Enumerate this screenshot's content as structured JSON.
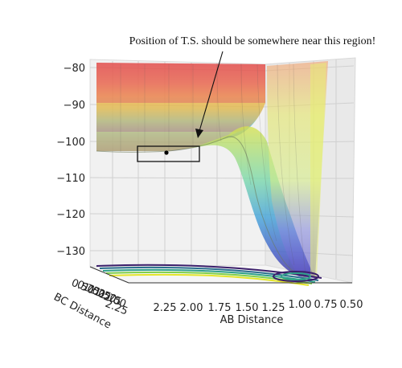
{
  "chart_data": {
    "type": "surface",
    "annotation": "Position of T.S. should be somewhere near this region!",
    "xlabel": "AB Distance",
    "ylabel": "BC Distance",
    "zlabel": "",
    "z_ticks": [
      "−80",
      "−90",
      "−100",
      "−110",
      "−120",
      "−130"
    ],
    "x_ticks": [
      "2.25",
      "2.00",
      "1.75",
      "1.50",
      "1.25",
      "1.00",
      "0.75",
      "0.50"
    ],
    "y_ticks": [
      "0.50",
      "0.75",
      "1.00",
      "1.25",
      "1.50",
      "1.75",
      "2.00",
      "2.25"
    ],
    "zlim": [
      -130,
      -80
    ],
    "xlim": [
      2.25,
      0.5
    ],
    "ylim": [
      0.5,
      2.25
    ],
    "grid": true,
    "colormap": "jet",
    "transition_state_marker": true
  }
}
